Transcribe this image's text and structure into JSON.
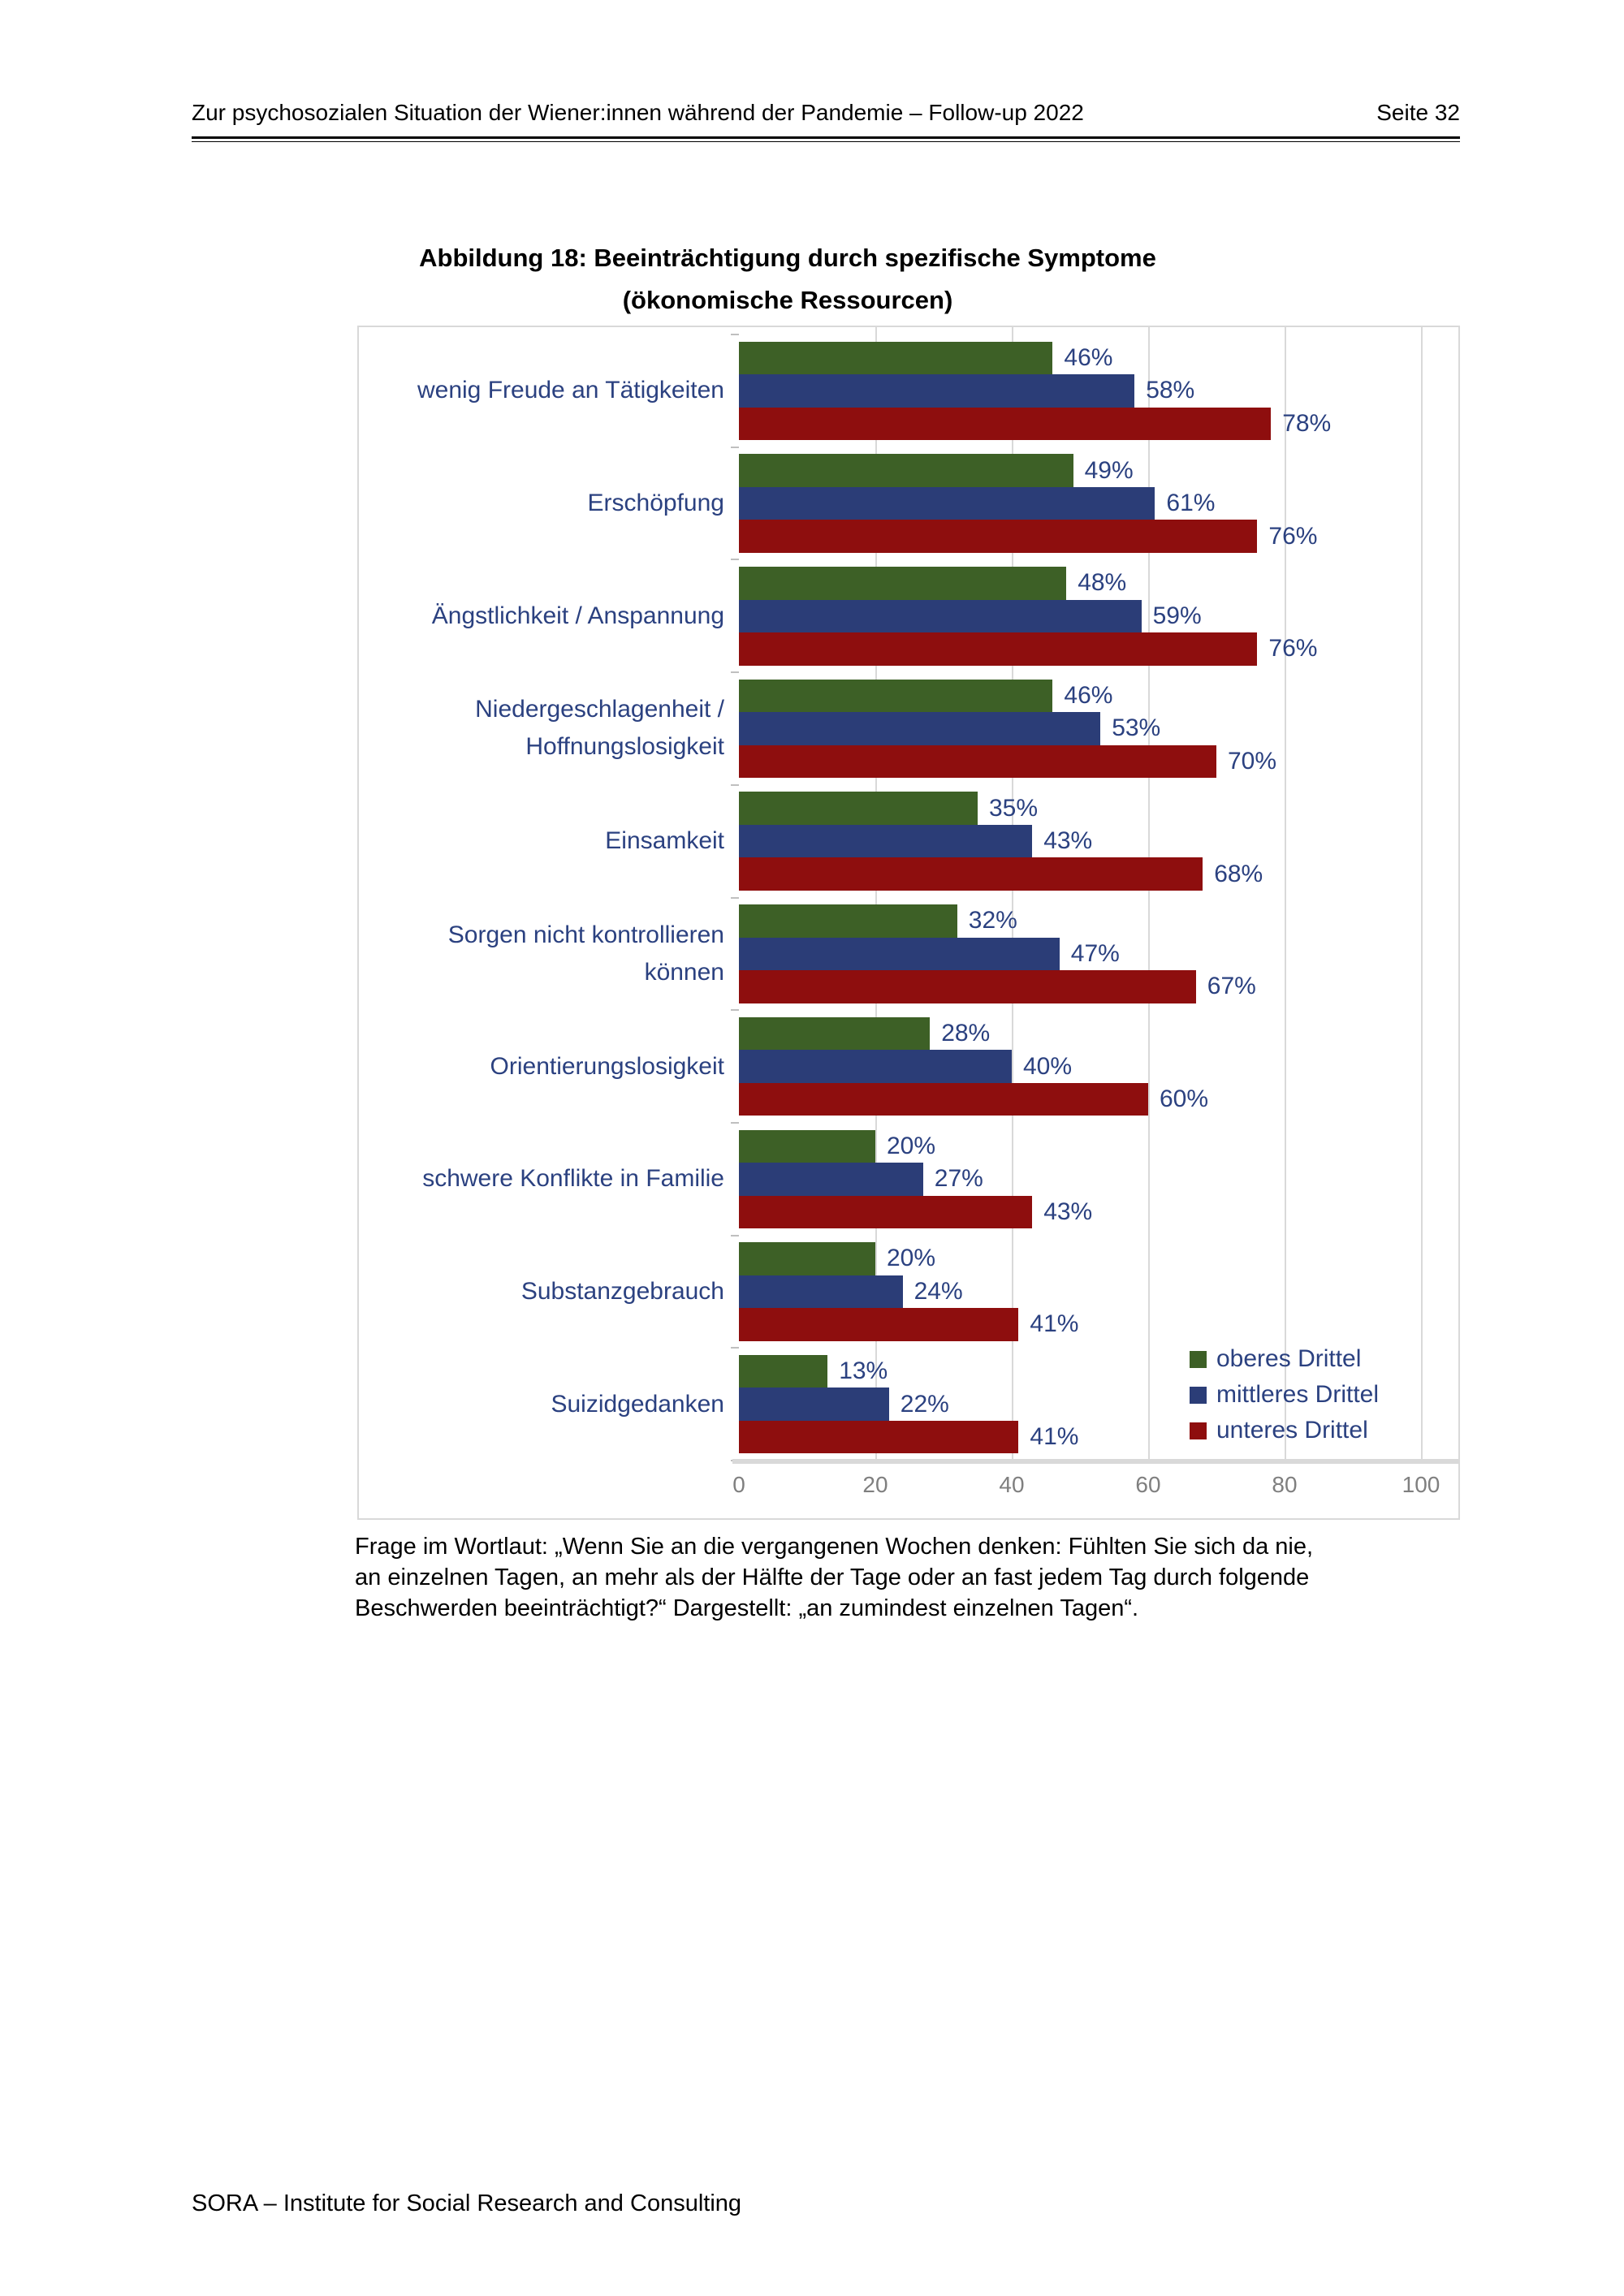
{
  "header": {
    "left": "Zur psychosozialen Situation der Wiener:innen während der Pandemie – Follow-up 2022",
    "right": "Seite 32"
  },
  "caption": {
    "line1": "Abbildung 18: Beeinträchtigung durch spezifische Symptome",
    "line2": "(ökonomische Ressourcen)"
  },
  "chart_data": {
    "type": "bar",
    "orientation": "horizontal",
    "title": "Abbildung 18: Beeinträchtigung durch spezifische Symptome (ökonomische Ressourcen)",
    "categories": [
      "wenig Freude an Tätigkeiten",
      "Erschöpfung",
      "Ängstlichkeit / Anspannung",
      "Niedergeschlagenheit / Hoffnungslosigkeit",
      "Einsamkeit",
      "Sorgen nicht kontrollieren können",
      "Orientierungslosigkeit",
      "schwere Konflikte in Familie",
      "Substanzgebrauch",
      "Suizidgedanken"
    ],
    "series": [
      {
        "name": "oberes Drittel",
        "color": "#3d6026",
        "values": [
          46,
          49,
          48,
          46,
          35,
          32,
          28,
          20,
          20,
          13
        ]
      },
      {
        "name": "mittleres Drittel",
        "color": "#2b3d77",
        "values": [
          58,
          61,
          59,
          53,
          43,
          47,
          40,
          27,
          24,
          22
        ]
      },
      {
        "name": "unteres Drittel",
        "color": "#8e0e0e",
        "values": [
          78,
          76,
          76,
          70,
          68,
          67,
          60,
          43,
          41,
          41
        ]
      }
    ],
    "value_suffix": "%",
    "x_ticks": [
      0,
      20,
      40,
      60,
      80,
      100
    ],
    "xlim": [
      0,
      105
    ],
    "grid": true,
    "legend_position": "inside-bottom-right",
    "colors": {
      "label_text": "#2b4180",
      "gridline": "#d9d9d9",
      "axis_line": "#d9d9d9",
      "tick_label": "#7f7f7f"
    }
  },
  "footnote": {
    "line1": "Frage im Wortlaut: „Wenn Sie an die vergangenen Wochen denken: Fühlten Sie sich da nie,",
    "line2": "an einzelnen Tagen, an mehr als der Hälfte der Tage oder an fast jedem Tag durch folgende",
    "line3": "Beschwerden beeinträchtigt?“ Dargestellt: „an zumindest einzelnen Tagen“."
  },
  "footer": "SORA – Institute for Social Research and Consulting"
}
